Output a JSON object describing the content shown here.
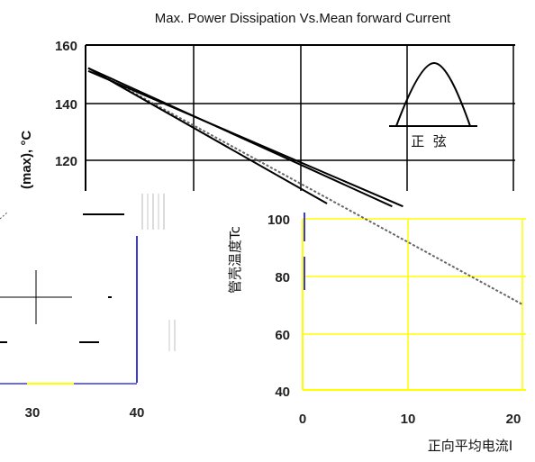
{
  "chart_data": {
    "type": "line",
    "title": "Max. Power Dissipation Vs.Mean forward Current",
    "ylabel_upper": "(max), °C",
    "ylabel_lower": "管壳温度Tc",
    "xlabel": "正向平均电流I",
    "inset_label": "正  弦",
    "upper_y_ticks": [
      "160",
      "140",
      "120"
    ],
    "lower_y_ticks": [
      "100",
      "80",
      "60",
      "40"
    ],
    "left_x_ticks": [
      "30",
      "40"
    ],
    "right_x_ticks": [
      "0",
      "10",
      "20"
    ],
    "ylim": [
      40,
      160
    ],
    "xlim": [
      0,
      20
    ],
    "series": [
      {
        "points": [
          [
            0,
            152
          ],
          [
            20,
            70
          ]
        ]
      },
      {
        "points": [
          [
            0,
            152
          ],
          [
            11,
            105
          ]
        ]
      },
      {
        "points": [
          [
            0,
            152
          ],
          [
            14,
            104
          ]
        ]
      },
      {
        "points": [
          [
            0,
            151
          ],
          [
            14.5,
            104
          ]
        ]
      }
    ]
  },
  "colors": {
    "grid_black": "#000000",
    "grid_yellow": "#ffff00",
    "axis_blue": "#3a3ad8",
    "curve": "#000000"
  }
}
